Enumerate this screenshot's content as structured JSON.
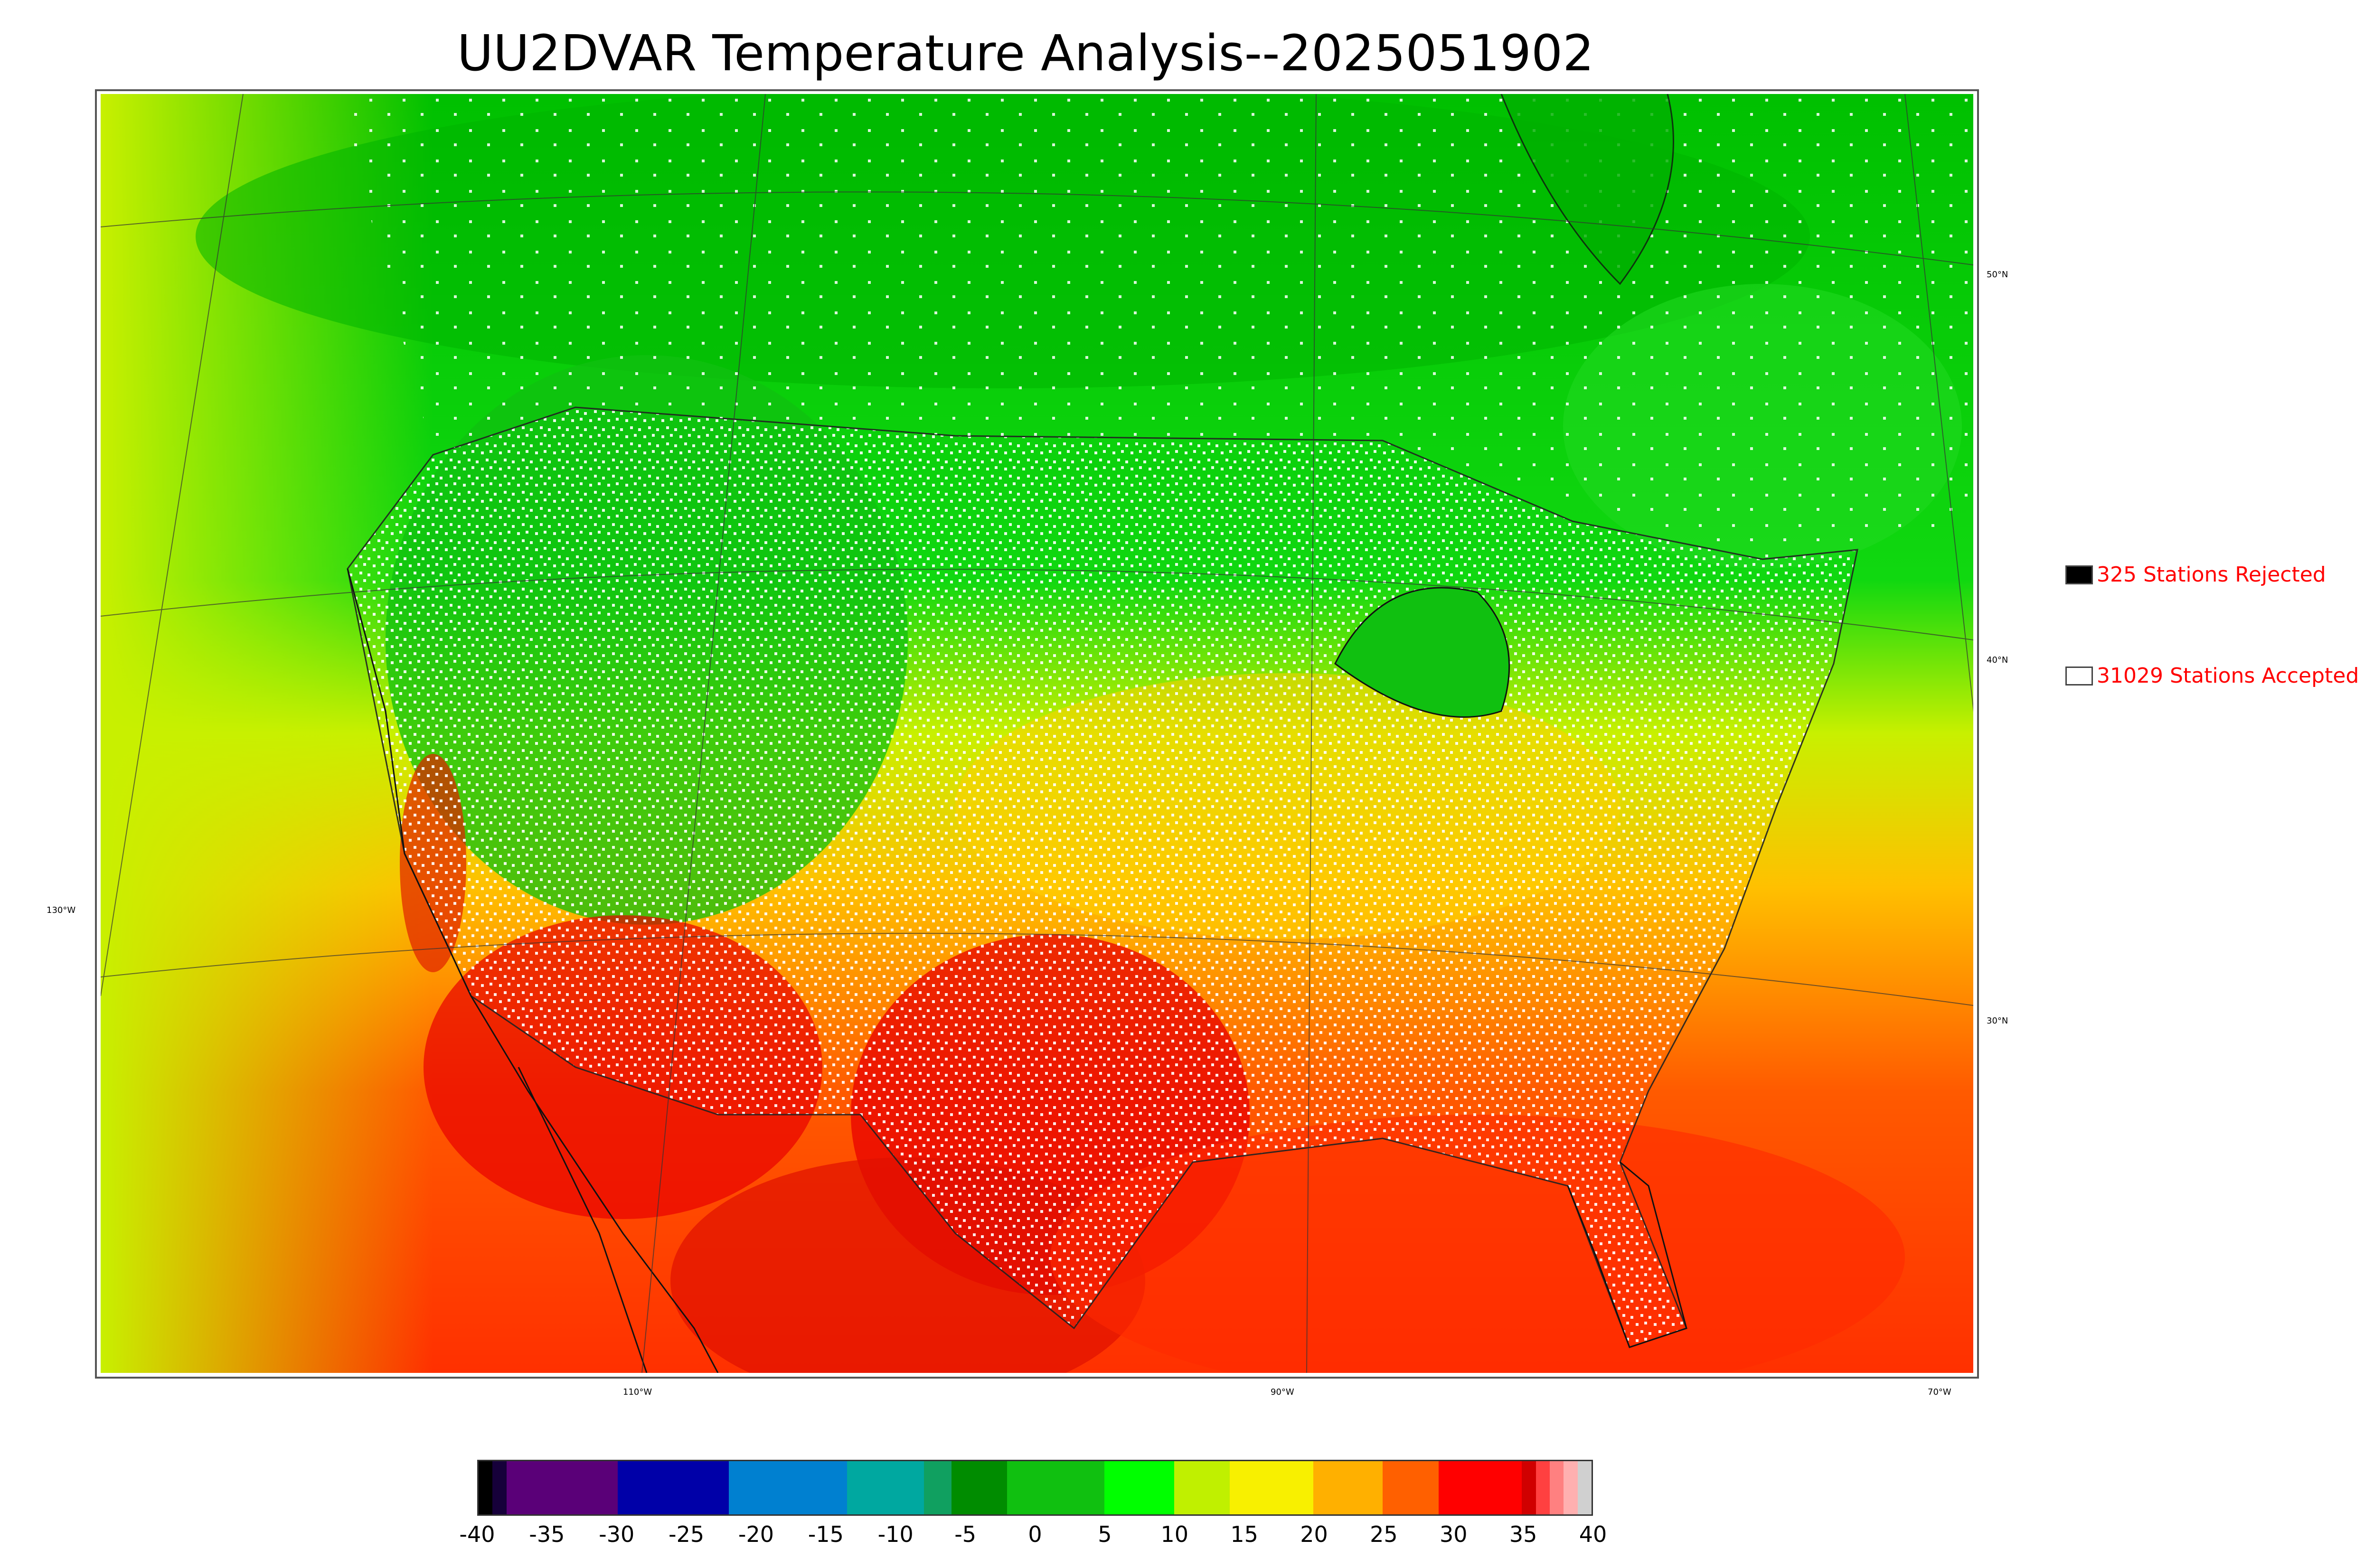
{
  "title": "UU2DVAR Temperature Analysis--2025051902",
  "map": {
    "lon_labels": [
      "130°W",
      "110°W",
      "90°W",
      "70°W"
    ],
    "lat_labels": [
      "50°N",
      "40°N",
      "30°N"
    ],
    "colors": {
      "cold": "#00b400",
      "cool": "#36e000",
      "mild": "#d8f000",
      "warm": "#ffc400",
      "hot": "#ff3a00",
      "very_hot": "#e01000"
    }
  },
  "legend": {
    "rejected": {
      "label": "325 Stations Rejected",
      "color": "#000000"
    },
    "accepted": {
      "label": "31029 Stations Accepted",
      "color": "#ffffff"
    }
  },
  "colorbar": {
    "min": -40,
    "max": 40,
    "tick_labels": [
      "-40",
      "-35",
      "-30",
      "-25",
      "-20",
      "-15",
      "-10",
      "-5",
      "0",
      "5",
      "10",
      "15",
      "20",
      "25",
      "30",
      "35",
      "40"
    ],
    "segments": [
      {
        "from": -40,
        "to": -39,
        "color": "#000000"
      },
      {
        "from": -39,
        "to": -38,
        "color": "#16003a"
      },
      {
        "from": -38,
        "to": -30,
        "color": "#5a0078"
      },
      {
        "from": -30,
        "to": -22,
        "color": "#0000a8"
      },
      {
        "from": -22,
        "to": -13.5,
        "color": "#0080d0"
      },
      {
        "from": -13.5,
        "to": -8,
        "color": "#00a8a0"
      },
      {
        "from": -8,
        "to": -6,
        "color": "#10a060"
      },
      {
        "from": -6,
        "to": -2,
        "color": "#008c00"
      },
      {
        "from": -2,
        "to": 5,
        "color": "#10c010"
      },
      {
        "from": 5,
        "to": 10,
        "color": "#00ff00"
      },
      {
        "from": 10,
        "to": 14,
        "color": "#c0f000"
      },
      {
        "from": 14,
        "to": 20,
        "color": "#f8f000"
      },
      {
        "from": 20,
        "to": 25,
        "color": "#ffb000"
      },
      {
        "from": 25,
        "to": 29,
        "color": "#ff6000"
      },
      {
        "from": 29,
        "to": 35,
        "color": "#ff0000"
      },
      {
        "from": 35,
        "to": 36,
        "color": "#d00000"
      },
      {
        "from": 36,
        "to": 37,
        "color": "#ff4040"
      },
      {
        "from": 37,
        "to": 38,
        "color": "#ff8080"
      },
      {
        "from": 38,
        "to": 39,
        "color": "#ffb0b0"
      },
      {
        "from": 39,
        "to": 40,
        "color": "#d0d0d0"
      }
    ]
  }
}
